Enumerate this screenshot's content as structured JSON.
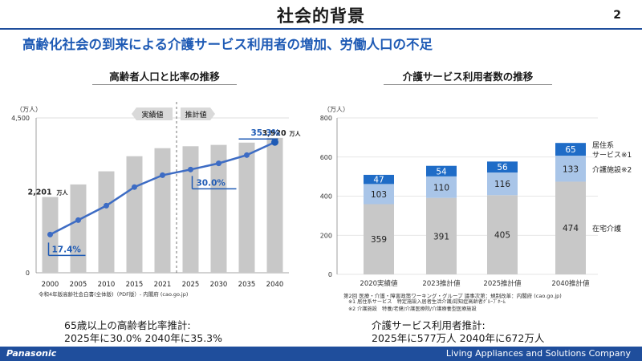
{
  "header": {
    "title": "社会的背景",
    "page_number": "2",
    "subtitle": "高齢化社会の到来による介護サービス利用者の増加、労働人口の不足"
  },
  "left_panel": {
    "title": "高齢者人口と比率の推移",
    "unit": "（万人）",
    "source": "令和4年版高齢社会白書(全体版)（PDF版）- 内閣府 (cao.go.jp)",
    "summary_line1": "65歳以上の高齢者比率推計:",
    "summary_line2": "2025年に30.0% 2040年に35.3%"
  },
  "right_panel": {
    "title": "介護サービス利用者数の推移",
    "unit": "（万人）",
    "source": "第2回 医療・介護・障害政策ワーキング・グループ 議事次第：規制改革：内閣府 (cao.go.jp)",
    "note1": "※1 居住系サービス　特定施設入居者生活介護/認知症高齢者ｸﾞﾙｰﾌﾟﾎｰﾑ",
    "note2": "※2 介護施設　特養/老健/介護医療院/介護療養型医療施設",
    "summary_line1": "介護サービス利用者推計:",
    "summary_line2": "2025年に577万人 2040年に672万人"
  },
  "footer": {
    "brand": "Panasonic",
    "company": "Living Appliances and Solutions Company"
  },
  "chart_data": [
    {
      "type": "bar",
      "title": "高齢者人口と比率の推移",
      "categories": [
        "2000",
        "2005",
        "2010",
        "2015",
        "2021",
        "2025",
        "2030",
        "2035",
        "2040"
      ],
      "ylim": [
        0,
        4500
      ],
      "y_ticks": [
        "0",
        "4,500"
      ],
      "phase_labels": [
        "実績値",
        "推計値"
      ],
      "colors": {
        "bar": "#c8c8c8",
        "line": "#3d6cc4",
        "accent": "#1f5bb5"
      },
      "series": [
        {
          "kind": "bar",
          "values": [
            2201,
            2567,
            2948,
            3387,
            3621,
            3677,
            3716,
            3782,
            3920
          ]
        },
        {
          "kind": "line",
          "values": [
            17.4,
            20.2,
            23.0,
            26.6,
            28.9,
            30.0,
            31.2,
            32.8,
            35.3
          ],
          "ylim": [
            10,
            40
          ]
        }
      ],
      "annotations": {
        "first_bar": "2,201",
        "last_bar": "3,920",
        "bar_unit": "万人",
        "ratio_first": "17.4%",
        "ratio_2025": "30.0%",
        "ratio_last": "35.3%"
      }
    },
    {
      "type": "bar",
      "stacked": true,
      "title": "介護サービス利用者数の推移",
      "categories": [
        "2020実績値",
        "2023推計値",
        "2025推計値",
        "2040推計値"
      ],
      "ylim": [
        0,
        800
      ],
      "y_ticks": [
        "0",
        "200",
        "400",
        "600",
        "800"
      ],
      "series": [
        {
          "name": "在宅介護",
          "color": "#c8c8c8",
          "values": [
            359,
            391,
            405,
            474
          ]
        },
        {
          "name": "介護施設※2",
          "color": "#a9c5e8",
          "values": [
            103,
            110,
            116,
            133
          ]
        },
        {
          "name": "居住系サービス※1",
          "color": "#1f6cc7",
          "values": [
            47,
            54,
            56,
            65
          ]
        }
      ],
      "legend_labels": [
        "在宅介護",
        "介護施設※2",
        "居住系",
        "サービス※1"
      ]
    }
  ]
}
